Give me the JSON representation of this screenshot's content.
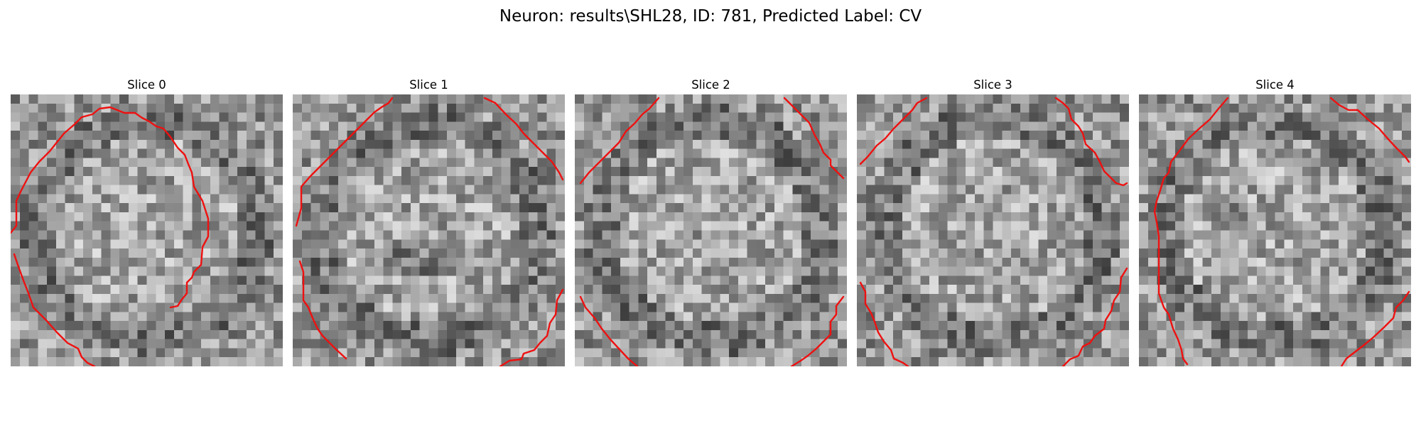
{
  "figure": {
    "title": "Neuron: results\\SHL28, ID: 781, Predicted Label: CV",
    "contour_color": "#ee1111",
    "colormap": "gray"
  },
  "panels": [
    {
      "title": "Slice 0"
    },
    {
      "title": "Slice 1"
    },
    {
      "title": "Slice 2"
    },
    {
      "title": "Slice 3"
    },
    {
      "title": "Slice 4"
    }
  ]
}
